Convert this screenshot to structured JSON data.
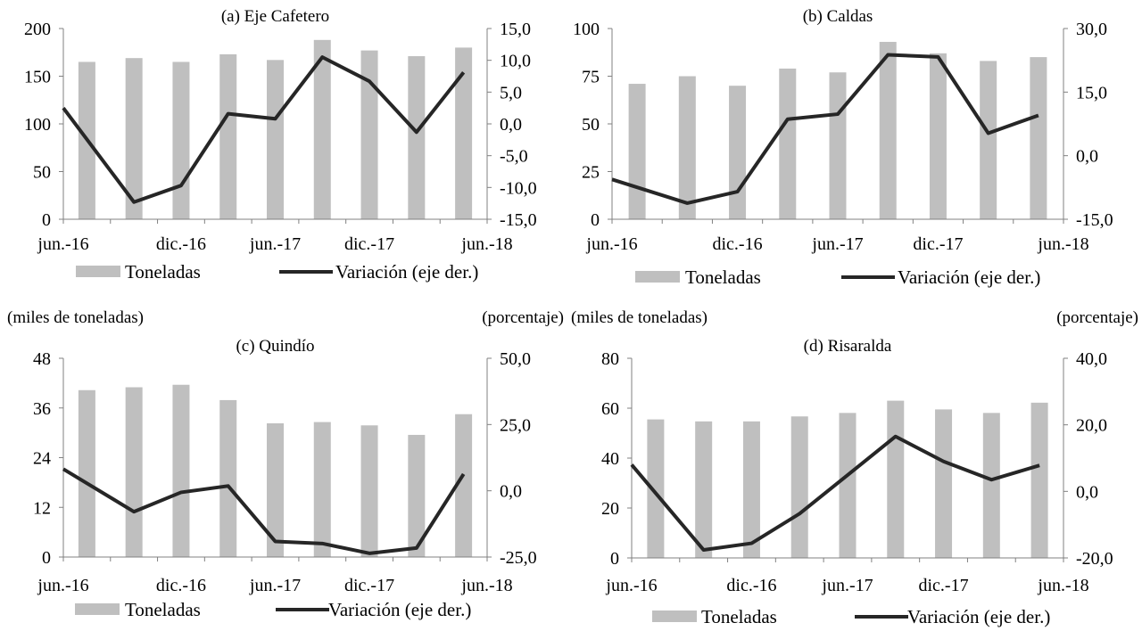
{
  "colors": {
    "bar": "#bfbfbf",
    "line": "#262626",
    "axis": "#808080"
  },
  "units": {
    "left": "(miles de toneladas)",
    "right": "(porcentaje)"
  },
  "legend": {
    "bar": "Toneladas",
    "line": "Variación (eje der.)"
  },
  "chart_data": [
    {
      "type": "bar+line",
      "title": "(a) Eje Cafetero",
      "x_ticks": [
        "jun.-16",
        "dic.-16",
        "jun.-17",
        "dic.-17",
        "jun.-18"
      ],
      "periods": [
        "jun.-16",
        "sep.-16",
        "dic.-16",
        "mar.-17",
        "jun.-17",
        "sep.-17",
        "dic.-17",
        "mar.-18",
        "jun.-18"
      ],
      "ylim_left": [
        0,
        200
      ],
      "yticks_left": [
        "0",
        "50",
        "100",
        "150",
        "200"
      ],
      "ylim_right": [
        -15,
        15
      ],
      "yticks_right": [
        "-15,0",
        "-10,0",
        "-5,0",
        "0,0",
        "5,0",
        "10,0",
        "15,0"
      ],
      "series": [
        {
          "name": "Toneladas",
          "type": "bar",
          "axis": "left",
          "values": [
            165,
            169,
            165,
            173,
            167,
            188,
            177,
            171,
            180
          ]
        },
        {
          "name": "Variación (eje der.)",
          "type": "line",
          "axis": "right",
          "values": [
            2.5,
            -12.3,
            -9.7,
            1.6,
            0.8,
            10.5,
            6.7,
            -1.3,
            8.1
          ]
        }
      ]
    },
    {
      "type": "bar+line",
      "title": "(b) Caldas",
      "x_ticks": [
        "jun.-16",
        "dic.-16",
        "jun.-17",
        "dic.-17",
        "jun.-18"
      ],
      "periods": [
        "jun.-16",
        "sep.-16",
        "dic.-16",
        "mar.-17",
        "jun.-17",
        "sep.-17",
        "dic.-17",
        "mar.-18",
        "jun.-18"
      ],
      "ylim_left": [
        0,
        100
      ],
      "yticks_left": [
        "0",
        "25",
        "50",
        "75",
        "100"
      ],
      "ylim_right": [
        -15,
        30
      ],
      "yticks_right": [
        "-15,0",
        "0,0",
        "15,0",
        "30,0"
      ],
      "series": [
        {
          "name": "Toneladas",
          "type": "bar",
          "axis": "left",
          "values": [
            71,
            75,
            70,
            79,
            77,
            93,
            87,
            83,
            85
          ]
        },
        {
          "name": "Variación (eje der.)",
          "type": "line",
          "axis": "right",
          "values": [
            -5.6,
            -11.2,
            -8.5,
            8.6,
            9.8,
            23.8,
            23.3,
            5.3,
            9.5
          ]
        }
      ]
    },
    {
      "type": "bar+line",
      "title": "(c) Quindío",
      "x_ticks": [
        "jun.-16",
        "dic.-16",
        "jun.-17",
        "dic.-17",
        "jun.-18"
      ],
      "periods": [
        "jun.-16",
        "sep.-16",
        "dic.-16",
        "mar.-17",
        "jun.-17",
        "sep.-17",
        "dic.-17",
        "mar.-18",
        "jun.-18"
      ],
      "ylim_left": [
        0,
        48
      ],
      "yticks_left": [
        "0",
        "12",
        "24",
        "36",
        "48"
      ],
      "ylim_right": [
        -25,
        50
      ],
      "yticks_right": [
        "-25,0",
        "0,0",
        "25,0",
        "50,0"
      ],
      "series": [
        {
          "name": "Toneladas",
          "type": "bar",
          "axis": "left",
          "values": [
            40.3,
            41,
            41.6,
            37.9,
            32.3,
            32.6,
            31.8,
            29.5,
            34.5
          ]
        },
        {
          "name": "Variación (eje der.)",
          "type": "line",
          "axis": "right",
          "values": [
            8.2,
            -7.9,
            -0.6,
            1.8,
            -19.1,
            -19.9,
            -23.6,
            -21.6,
            6.3
          ]
        }
      ]
    },
    {
      "type": "bar+line",
      "title": "(d) Risaralda",
      "x_ticks": [
        "jun.-16",
        "dic.-16",
        "jun.-17",
        "dic.-17",
        "jun.-18"
      ],
      "periods": [
        "jun.-16",
        "sep.-16",
        "dic.-16",
        "mar.-17",
        "jun.-17",
        "sep.-17",
        "dic.-17",
        "mar.-18",
        "jun.-18"
      ],
      "ylim_left": [
        0,
        80
      ],
      "yticks_left": [
        "0",
        "20",
        "40",
        "60",
        "80"
      ],
      "ylim_right": [
        -20,
        40
      ],
      "yticks_right": [
        "-20,0",
        "0,0",
        "20,0",
        "40,0"
      ],
      "series": [
        {
          "name": "Toneladas",
          "type": "bar",
          "axis": "left",
          "values": [
            55.5,
            54.7,
            54.7,
            56.7,
            58.1,
            63,
            59.5,
            58.1,
            62.2
          ]
        },
        {
          "name": "Variación (eje der.)",
          "type": "line",
          "axis": "right",
          "values": [
            8,
            -17.6,
            -15.6,
            -6.7,
            4.9,
            16.5,
            9,
            3.5,
            7.8
          ]
        }
      ]
    }
  ]
}
